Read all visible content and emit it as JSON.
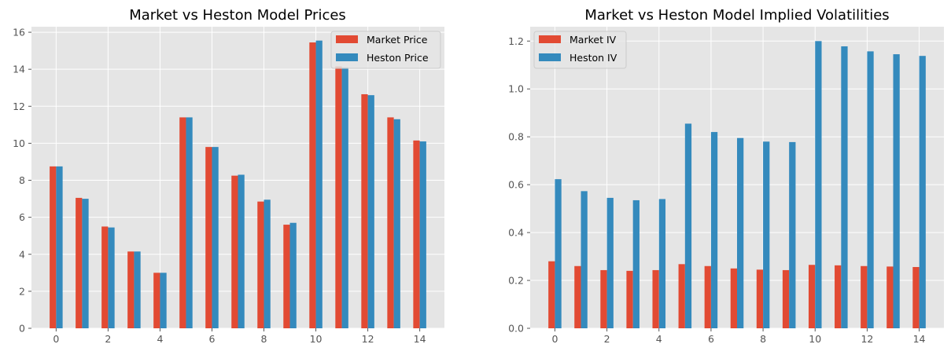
{
  "colors": {
    "market": "#E24A33",
    "heston": "#348ABD",
    "plot_bg": "#E5E5E5",
    "grid": "#FFFFFF"
  },
  "chart_data": [
    {
      "type": "bar",
      "title": "Market vs Heston Model Prices",
      "xlabel": "",
      "ylabel": "",
      "x": [
        0,
        1,
        2,
        3,
        4,
        5,
        6,
        7,
        8,
        9,
        10,
        11,
        12,
        13,
        14
      ],
      "xticks": [
        "0",
        "2",
        "4",
        "6",
        "8",
        "10",
        "12",
        "14"
      ],
      "yticks": [
        "0",
        "2",
        "4",
        "6",
        "8",
        "10",
        "12",
        "14",
        "16"
      ],
      "ylim": [
        0,
        16.3
      ],
      "xlim": [
        -0.95,
        14.95
      ],
      "grid": true,
      "legend": "top-right",
      "series": [
        {
          "name": "Market Price",
          "color": "#E24A33",
          "values": [
            8.75,
            7.05,
            5.5,
            4.15,
            3.0,
            11.4,
            9.8,
            8.25,
            6.85,
            5.6,
            15.45,
            14.15,
            12.65,
            11.4,
            10.15
          ]
        },
        {
          "name": "Heston Price",
          "color": "#348ABD",
          "values": [
            8.75,
            7.0,
            5.45,
            4.15,
            3.0,
            11.4,
            9.8,
            8.3,
            6.95,
            5.7,
            15.55,
            14.1,
            12.6,
            11.3,
            10.1
          ]
        }
      ]
    },
    {
      "type": "bar",
      "title": "Market vs Heston Model Implied Volatilities",
      "xlabel": "",
      "ylabel": "",
      "x": [
        0,
        1,
        2,
        3,
        4,
        5,
        6,
        7,
        8,
        9,
        10,
        11,
        12,
        13,
        14
      ],
      "xticks": [
        "0",
        "2",
        "4",
        "6",
        "8",
        "10",
        "12",
        "14"
      ],
      "yticks": [
        "0.0",
        "0.2",
        "0.4",
        "0.6",
        "0.8",
        "1.0",
        "1.2"
      ],
      "ytick_values": [
        0,
        0.2,
        0.4,
        0.6,
        0.8,
        1.0,
        1.2
      ],
      "ylim": [
        0,
        1.26
      ],
      "xlim": [
        -0.95,
        14.95
      ],
      "grid": true,
      "legend": "top-left",
      "series": [
        {
          "name": "Market IV",
          "color": "#E24A33",
          "values": [
            0.28,
            0.26,
            0.243,
            0.24,
            0.243,
            0.268,
            0.26,
            0.25,
            0.245,
            0.243,
            0.265,
            0.263,
            0.26,
            0.258,
            0.256
          ]
        },
        {
          "name": "Heston IV",
          "color": "#348ABD",
          "values": [
            0.623,
            0.573,
            0.545,
            0.535,
            0.54,
            0.855,
            0.82,
            0.795,
            0.78,
            0.778,
            1.2,
            1.178,
            1.157,
            1.145,
            1.138
          ]
        }
      ]
    }
  ]
}
